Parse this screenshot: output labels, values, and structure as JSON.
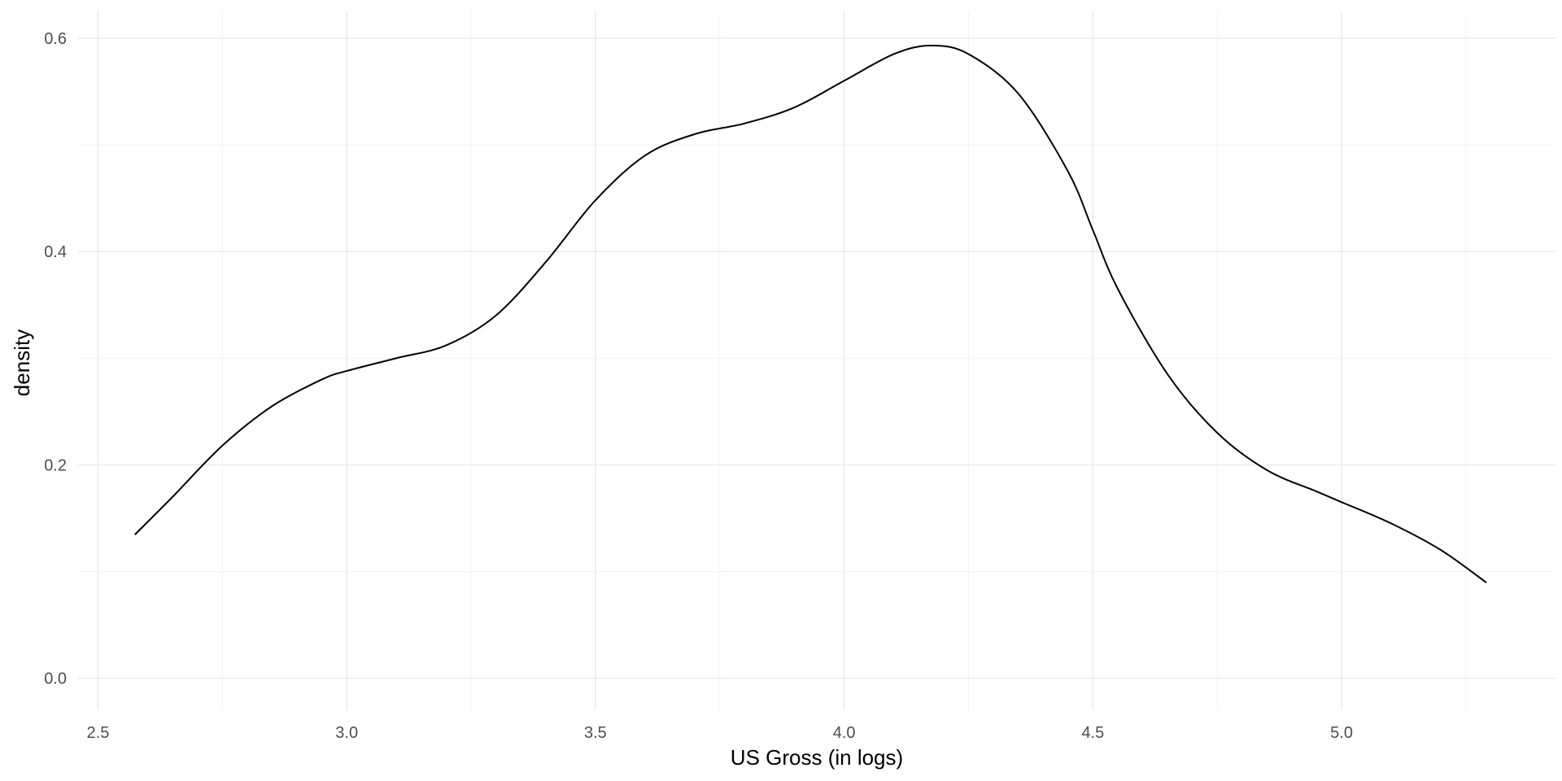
{
  "chart_data": {
    "type": "line",
    "title": "",
    "xlabel": "US Gross (in logs)",
    "ylabel": "density",
    "xlim": [
      2.46,
      5.43
    ],
    "ylim": [
      -0.03,
      0.625
    ],
    "x_ticks": [
      2.5,
      3.0,
      3.5,
      4.0,
      4.5,
      5.0
    ],
    "x_tick_labels": [
      "2.5",
      "3.0",
      "3.5",
      "4.0",
      "4.5",
      "5.0"
    ],
    "y_ticks": [
      0.0,
      0.2,
      0.4,
      0.6
    ],
    "y_tick_labels": [
      "0.0",
      "0.2",
      "0.4",
      "0.6"
    ],
    "x_minor_ticks": [
      2.75,
      3.25,
      3.75,
      4.25,
      4.75,
      5.25
    ],
    "y_minor_ticks": [
      0.1,
      0.3,
      0.5
    ],
    "grid": true,
    "legend": "none",
    "series": [
      {
        "color": "#000000",
        "x": [
          2.575,
          2.65,
          2.75,
          2.85,
          2.95,
          3.0,
          3.1,
          3.2,
          3.3,
          3.4,
          3.5,
          3.6,
          3.7,
          3.8,
          3.9,
          4.0,
          4.1,
          4.175,
          4.25,
          4.35,
          4.45,
          4.5,
          4.55,
          4.65,
          4.75,
          4.85,
          4.95,
          5.0,
          5.1,
          5.2,
          5.29
        ],
        "y": [
          0.135,
          0.17,
          0.218,
          0.255,
          0.28,
          0.288,
          0.3,
          0.312,
          0.34,
          0.39,
          0.448,
          0.49,
          0.51,
          0.52,
          0.535,
          0.56,
          0.585,
          0.593,
          0.585,
          0.548,
          0.475,
          0.42,
          0.365,
          0.285,
          0.23,
          0.195,
          0.175,
          0.165,
          0.145,
          0.12,
          0.09
        ]
      }
    ]
  }
}
